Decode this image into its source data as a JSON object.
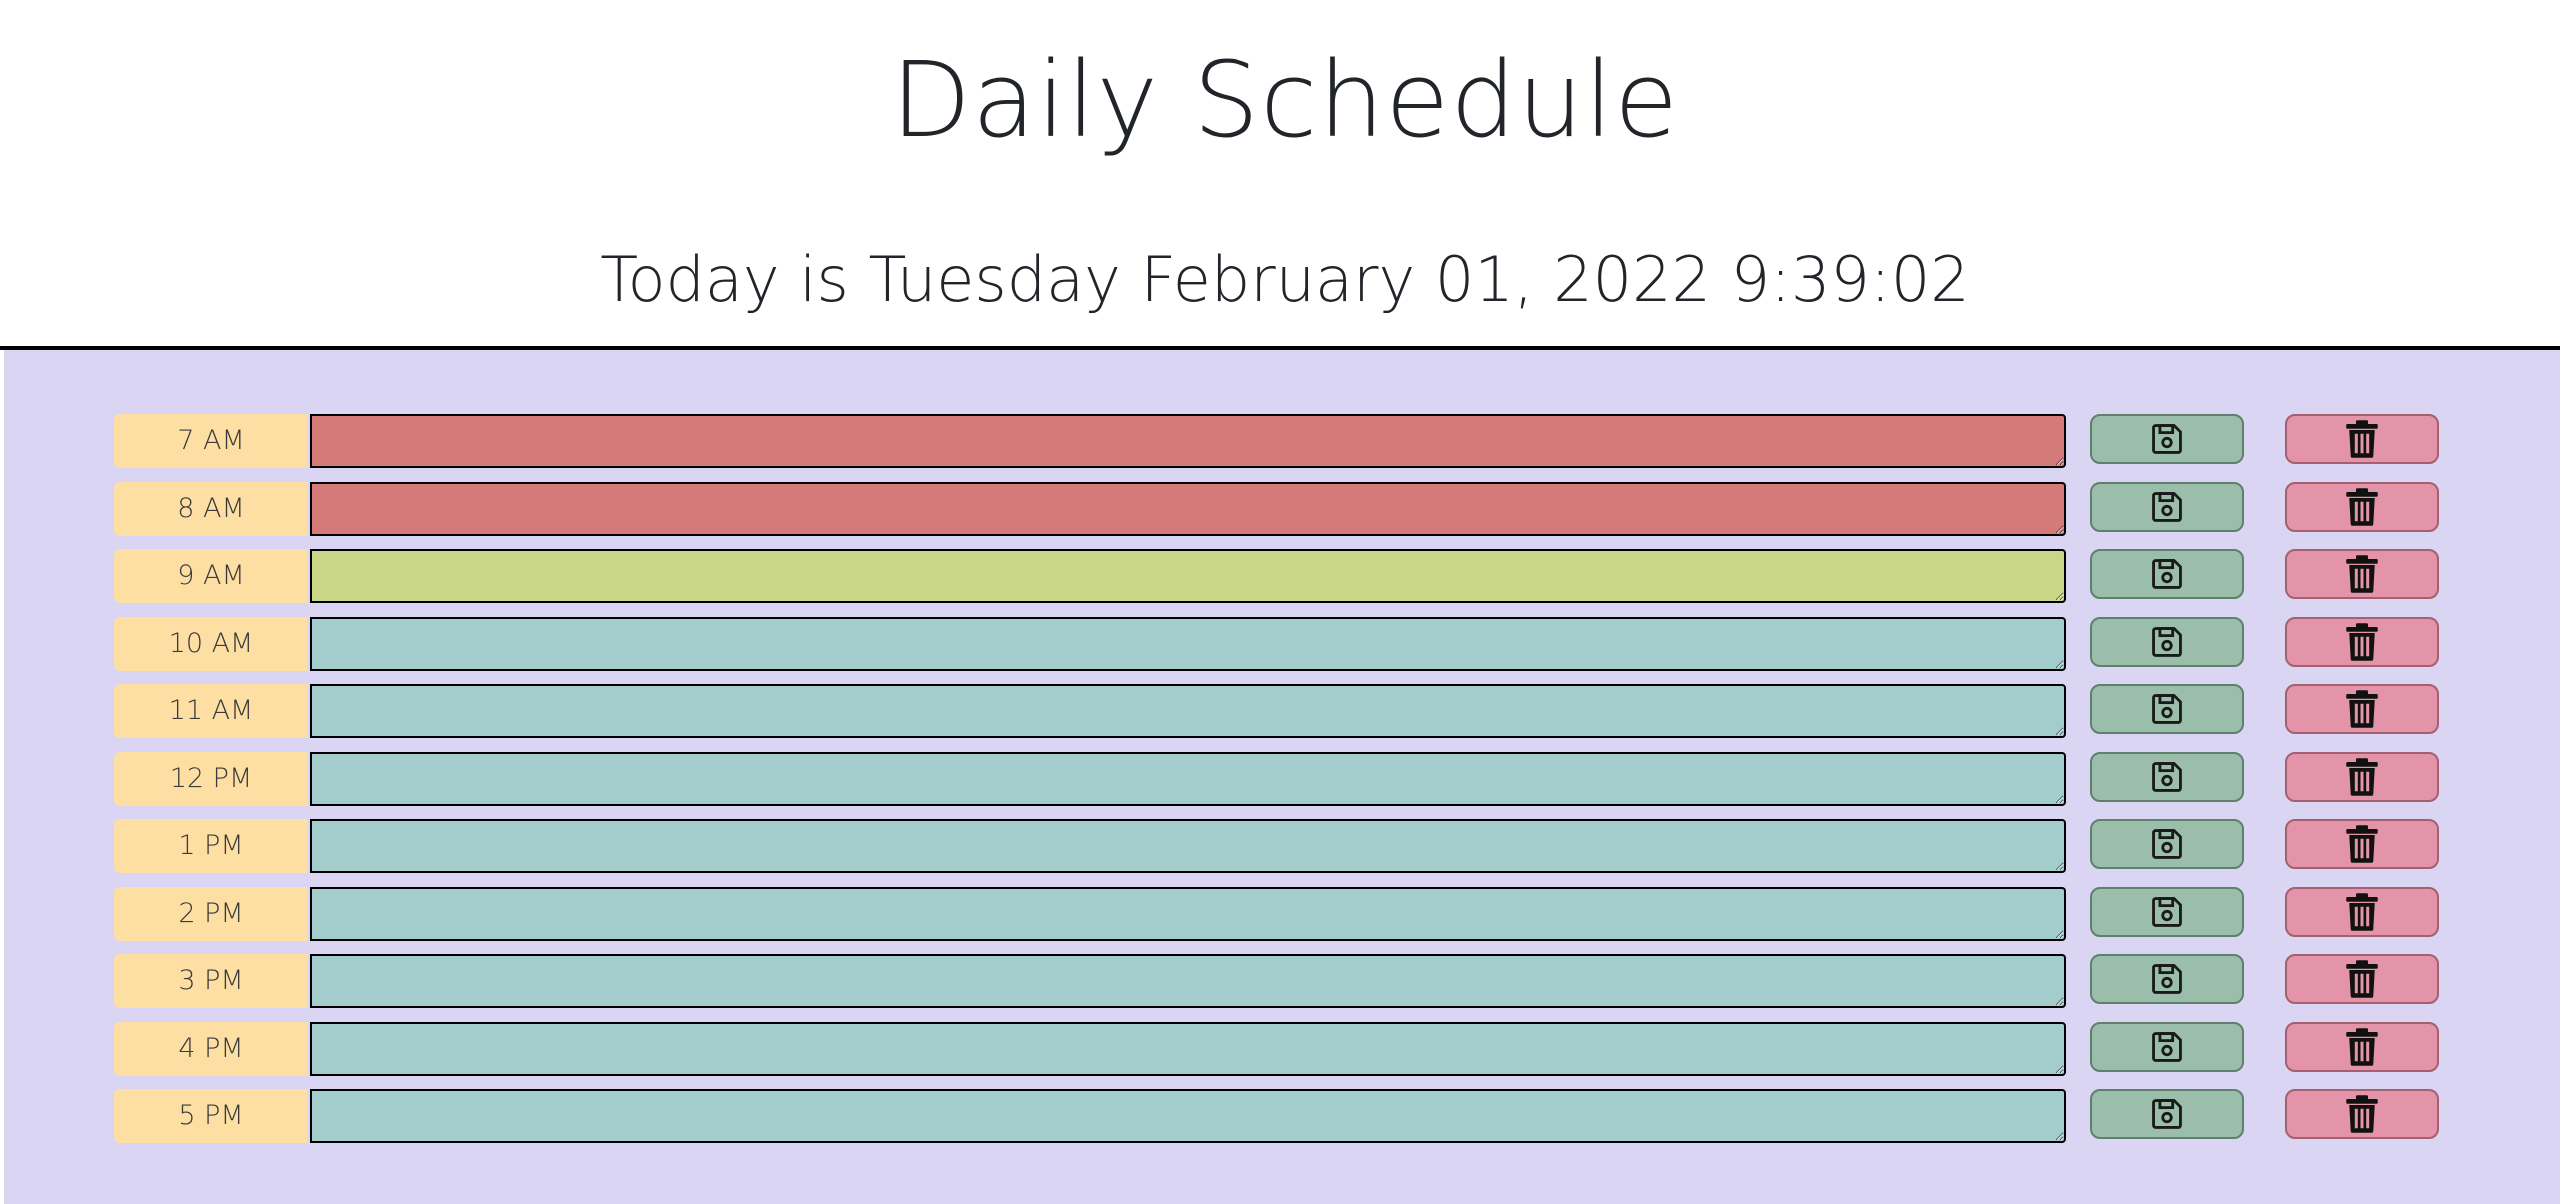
{
  "header": {
    "title": "Daily Schedule",
    "current_date": "Today is Tuesday February 01, 2022 9:39:02"
  },
  "icons": {
    "save": "floppy-disk-icon",
    "delete": "trash-can-icon"
  },
  "colors": {
    "background": "#dad5f3",
    "hour_label": "#fddfa4",
    "past": "#d47b7a",
    "present": "#c8d685",
    "future": "#a2cdcc",
    "save_button": "#9bbeab",
    "delete_button": "#e394a8"
  },
  "timeblocks": [
    {
      "hour": "7 AM",
      "status": "past",
      "text": ""
    },
    {
      "hour": "8 AM",
      "status": "past",
      "text": ""
    },
    {
      "hour": "9 AM",
      "status": "present",
      "text": ""
    },
    {
      "hour": "10 AM",
      "status": "future",
      "text": ""
    },
    {
      "hour": "11 AM",
      "status": "future",
      "text": ""
    },
    {
      "hour": "12 PM",
      "status": "future",
      "text": ""
    },
    {
      "hour": "1 PM",
      "status": "future",
      "text": ""
    },
    {
      "hour": "2 PM",
      "status": "future",
      "text": ""
    },
    {
      "hour": "3 PM",
      "status": "future",
      "text": ""
    },
    {
      "hour": "4 PM",
      "status": "future",
      "text": ""
    },
    {
      "hour": "5 PM",
      "status": "future",
      "text": ""
    }
  ]
}
